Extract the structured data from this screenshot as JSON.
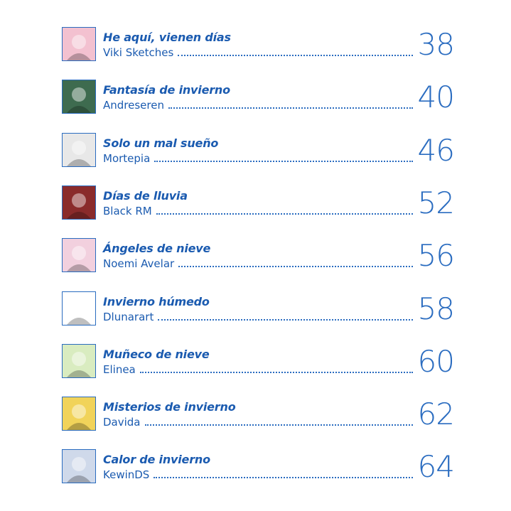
{
  "entries": [
    {
      "title": "He aquí, vienen días",
      "author": "Viki Sketches",
      "page": "38",
      "thumb_color": "#f3c1d0"
    },
    {
      "title": "Fantasía de invierno",
      "author": "Andreseren",
      "page": "40",
      "thumb_color": "#3e6b4f"
    },
    {
      "title": "Solo un mal sueño",
      "author": "Mortepia",
      "page": "46",
      "thumb_color": "#e8e8e8"
    },
    {
      "title": "Días de lluvia",
      "author": "Black RM",
      "page": "52",
      "thumb_color": "#8a2b2b"
    },
    {
      "title": "Ángeles de nieve",
      "author": "Noemi Avelar",
      "page": "56",
      "thumb_color": "#f2d0de"
    },
    {
      "title": "Invierno húmedo",
      "author": "Dlunarart",
      "page": "58",
      "thumb_color": "#ffffff"
    },
    {
      "title": "Muñeco de nieve",
      "author": "Elinea",
      "page": "60",
      "thumb_color": "#d9ecc0"
    },
    {
      "title": "Misterios de invierno",
      "author": "Davida",
      "page": "62",
      "thumb_color": "#f1d35a"
    },
    {
      "title": "Calor de invierno",
      "author": "KewinDS",
      "page": "64",
      "thumb_color": "#cfd9ea"
    }
  ],
  "colors": {
    "accent": "#1b5bb0"
  }
}
